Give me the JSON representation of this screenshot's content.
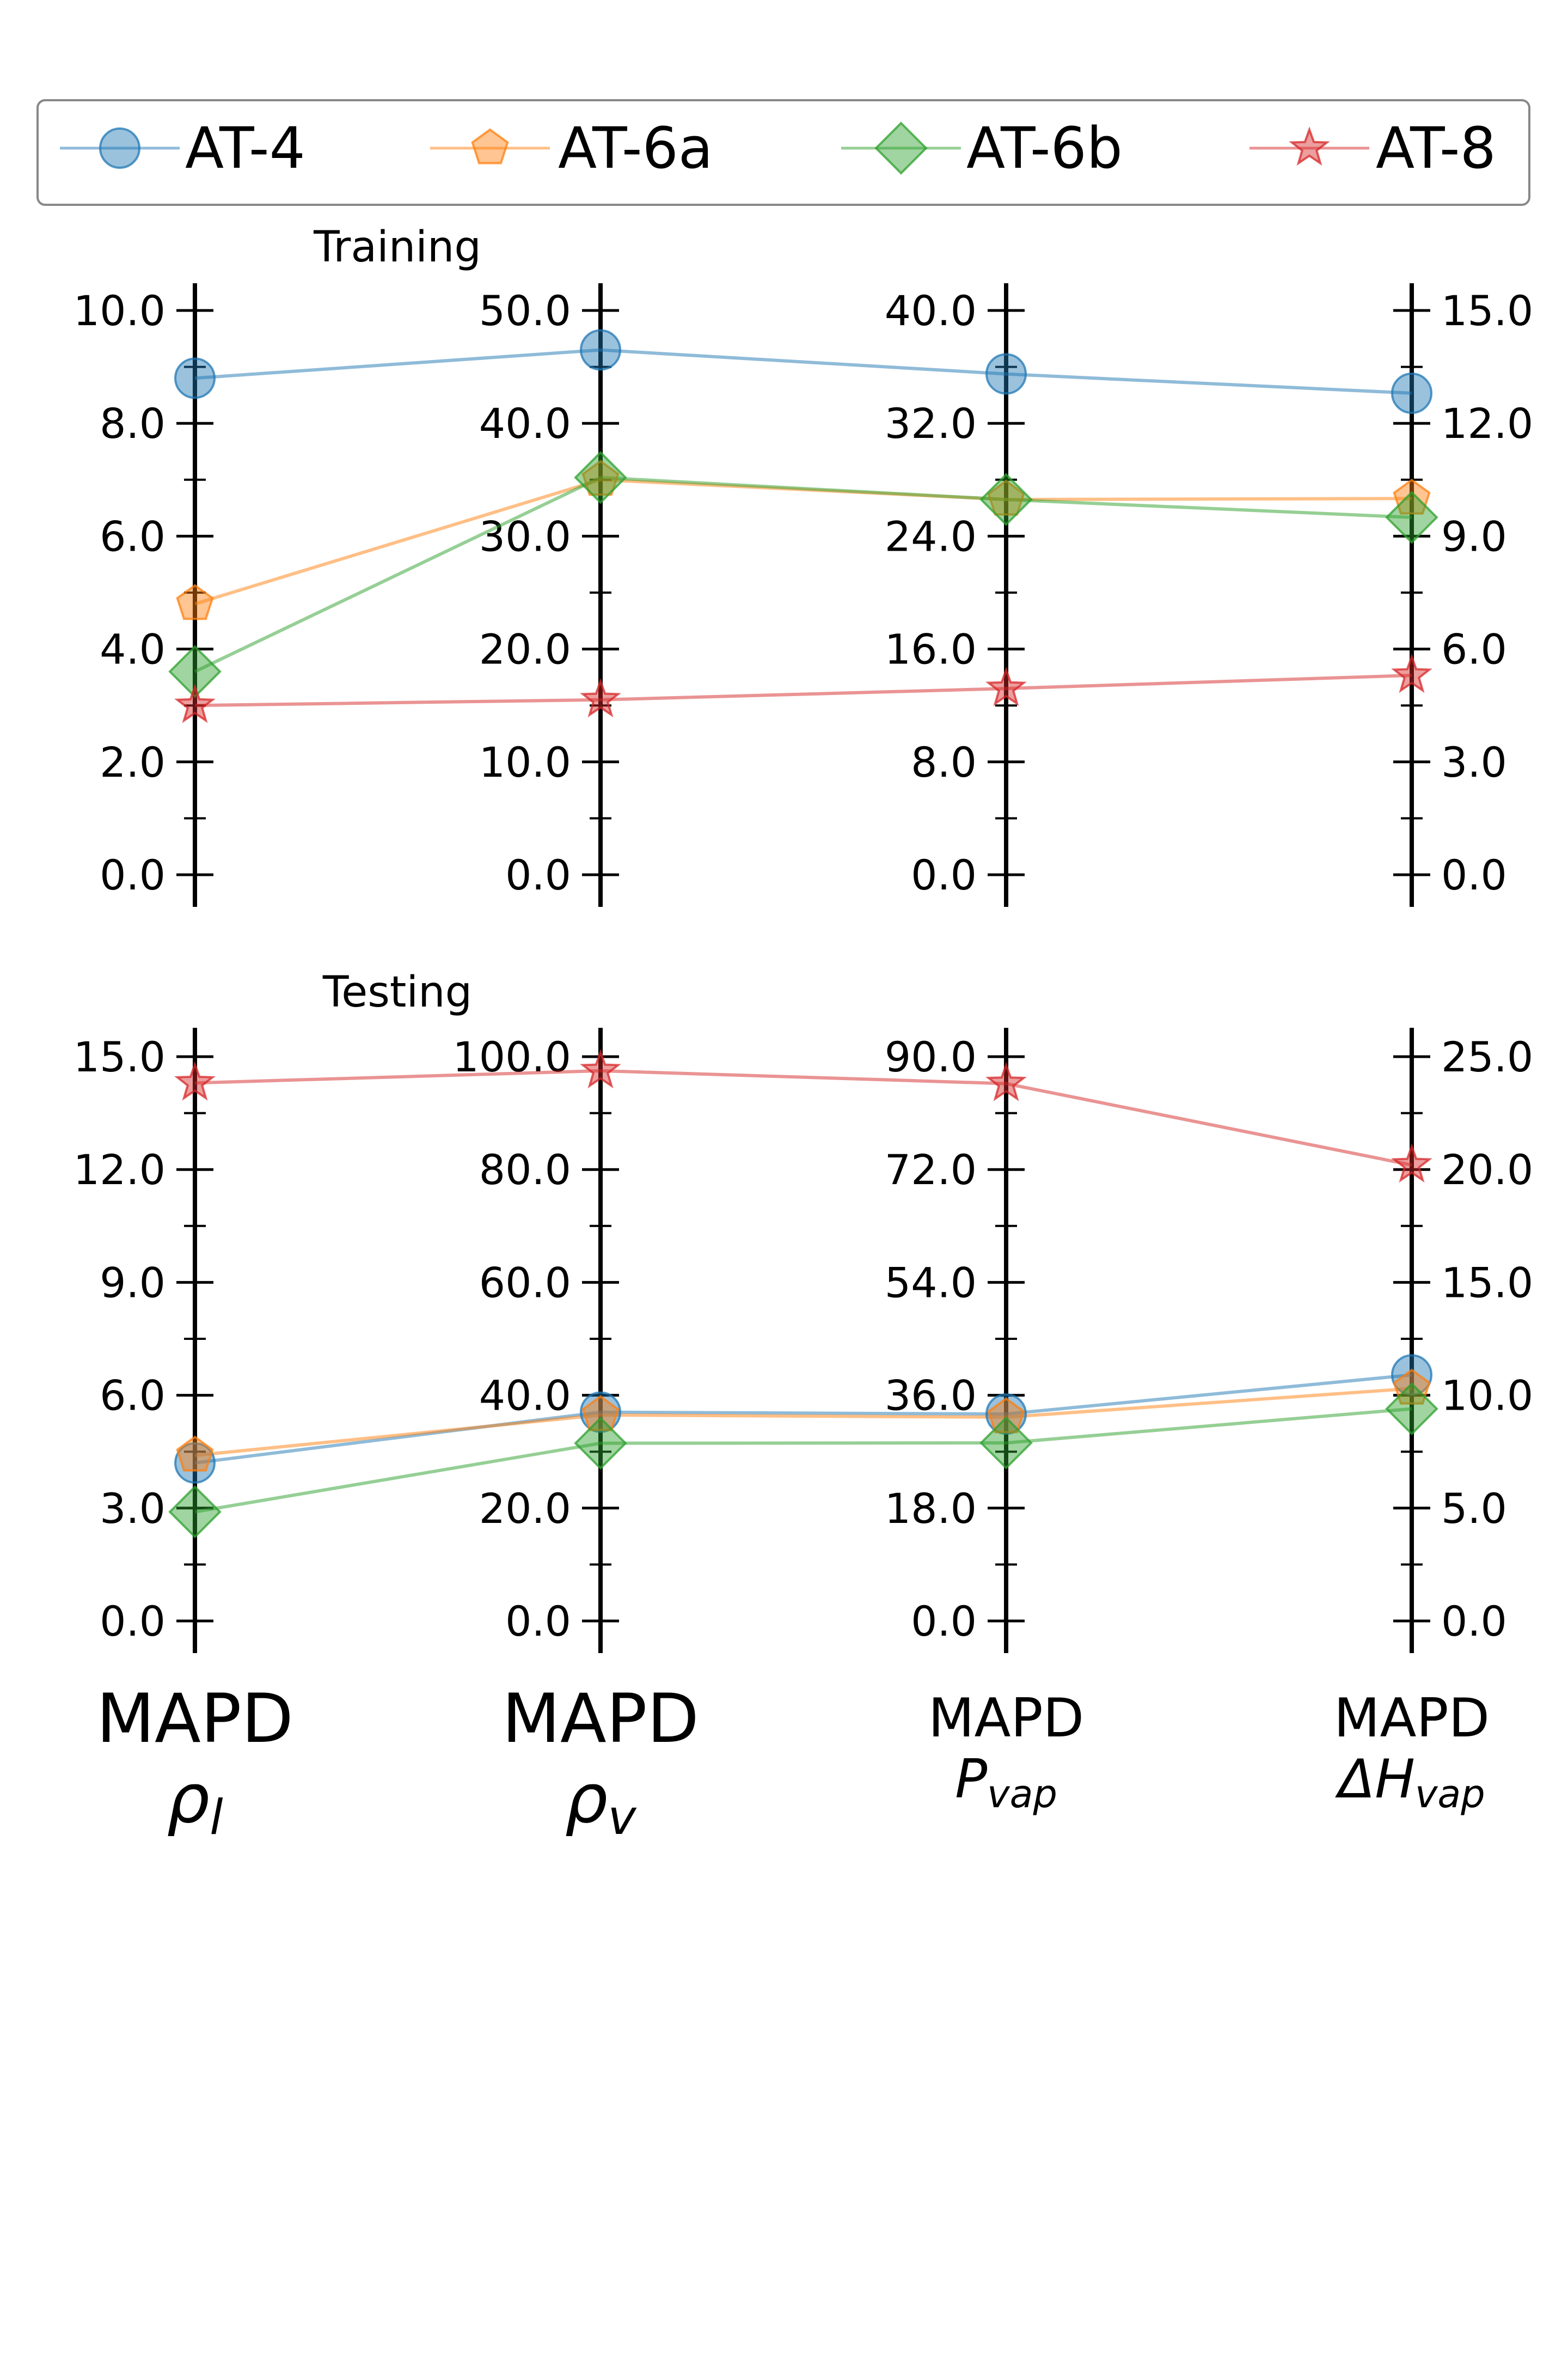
{
  "chart_data": {
    "type": "parallel-coordinates",
    "legend": {
      "placement": "top",
      "entries": [
        {
          "name": "AT-4",
          "marker": "circle",
          "color": "#1f77b4"
        },
        {
          "name": "AT-6a",
          "marker": "pentagon",
          "color": "#ff7f0e"
        },
        {
          "name": "AT-6b",
          "marker": "diamond",
          "color": "#2ca02c"
        },
        {
          "name": "AT-8",
          "marker": "star",
          "color": "#d62728"
        }
      ]
    },
    "axes": [
      {
        "id": "rho_l",
        "label_top": "MAPD",
        "label_symbol": "ρ",
        "label_sub": "l"
      },
      {
        "id": "rho_v",
        "label_top": "MAPD",
        "label_symbol": "ρ",
        "label_sub": "v"
      },
      {
        "id": "p_vap",
        "label_top": "MAPD",
        "label_symbol": "P",
        "label_sub": "vap"
      },
      {
        "id": "dh_vap",
        "label_top": "MAPD",
        "label_symbol": "ΔH",
        "label_sub": "vap"
      }
    ],
    "panels": [
      {
        "title": "Training",
        "ranges": [
          [
            0,
            10
          ],
          [
            0,
            50
          ],
          [
            0,
            40
          ],
          [
            0,
            15
          ]
        ],
        "ticks": [
          [
            "0.0",
            "2.0",
            "4.0",
            "6.0",
            "8.0",
            "10.0"
          ],
          [
            "0.0",
            "10.0",
            "20.0",
            "30.0",
            "40.0",
            "50.0"
          ],
          [
            "0.0",
            "8.0",
            "16.0",
            "24.0",
            "32.0",
            "40.0"
          ],
          [
            "0.0",
            "3.0",
            "6.0",
            "9.0",
            "12.0",
            "15.0"
          ]
        ],
        "series": [
          {
            "name": "AT-4",
            "values": [
              8.8,
              46.5,
              35.5,
              12.8
            ]
          },
          {
            "name": "AT-6a",
            "values": [
              4.8,
              35.0,
              26.6,
              10.0
            ]
          },
          {
            "name": "AT-6b",
            "values": [
              3.6,
              35.2,
              26.6,
              9.5
            ]
          },
          {
            "name": "AT-8",
            "values": [
              3.0,
              15.5,
              13.2,
              5.3
            ]
          }
        ]
      },
      {
        "title": "Testing",
        "ranges": [
          [
            0,
            15
          ],
          [
            0,
            100
          ],
          [
            0,
            90
          ],
          [
            0,
            25
          ]
        ],
        "ticks": [
          [
            "0.0",
            "3.0",
            "6.0",
            "9.0",
            "12.0",
            "15.0"
          ],
          [
            "0.0",
            "20.0",
            "40.0",
            "60.0",
            "80.0",
            "100.0"
          ],
          [
            "0.0",
            "18.0",
            "36.0",
            "54.0",
            "72.0",
            "90.0"
          ],
          [
            "0.0",
            "5.0",
            "10.0",
            "15.0",
            "20.0",
            "25.0"
          ]
        ],
        "series": [
          {
            "name": "AT-4",
            "values": [
              4.2,
              37.0,
              33.0,
              10.9
            ]
          },
          {
            "name": "AT-6a",
            "values": [
              4.4,
              36.5,
              32.5,
              10.3
            ]
          },
          {
            "name": "AT-6b",
            "values": [
              2.9,
              31.5,
              28.4,
              9.4
            ]
          },
          {
            "name": "AT-8",
            "values": [
              14.3,
              97.5,
              85.7,
              20.2
            ]
          }
        ]
      }
    ]
  }
}
